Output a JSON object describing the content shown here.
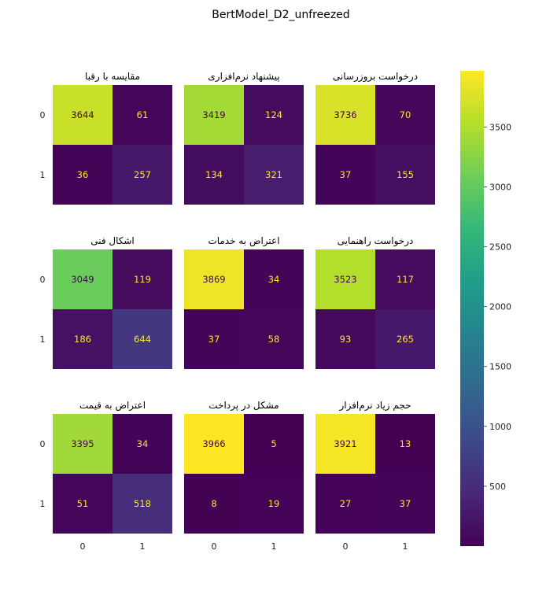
{
  "title": "BertModel_D2_unfreezed",
  "chart_data": {
    "type": "heatmap",
    "title": "BertModel_D2_unfreezed",
    "colormap": "viridis",
    "x_tick_labels": [
      "0",
      "1"
    ],
    "y_tick_labels": [
      "0",
      "1"
    ],
    "colorbar": {
      "min": 0,
      "max": 3969,
      "ticks": [
        500,
        1000,
        1500,
        2000,
        2500,
        3000,
        3500
      ],
      "tick_labels": [
        "500",
        "1000",
        "1500",
        "2000",
        "2500",
        "3000",
        "3500"
      ]
    },
    "panels": [
      {
        "title": "مقایسه با رقبا",
        "matrix": [
          [
            3644,
            61
          ],
          [
            36,
            257
          ]
        ]
      },
      {
        "title": "پیشنهاد نرم‌افزاری",
        "matrix": [
          [
            3419,
            124
          ],
          [
            134,
            321
          ]
        ]
      },
      {
        "title": "درخواست بروزرسانی",
        "matrix": [
          [
            3736,
            70
          ],
          [
            37,
            155
          ]
        ]
      },
      {
        "title": "اشکال فنی",
        "matrix": [
          [
            3049,
            119
          ],
          [
            186,
            644
          ]
        ]
      },
      {
        "title": "اعتراض به خدمات",
        "matrix": [
          [
            3869,
            34
          ],
          [
            37,
            58
          ]
        ]
      },
      {
        "title": "درخواست راهنمایی",
        "matrix": [
          [
            3523,
            117
          ],
          [
            93,
            265
          ]
        ]
      },
      {
        "title": "اعتراض به قیمت",
        "matrix": [
          [
            3395,
            34
          ],
          [
            51,
            518
          ]
        ]
      },
      {
        "title": "مشکل در پرداخت",
        "matrix": [
          [
            3966,
            5
          ],
          [
            8,
            19
          ]
        ]
      },
      {
        "title": "حجم زیاد نرم‌افزار",
        "matrix": [
          [
            3921,
            13
          ],
          [
            27,
            37
          ]
        ]
      }
    ]
  }
}
